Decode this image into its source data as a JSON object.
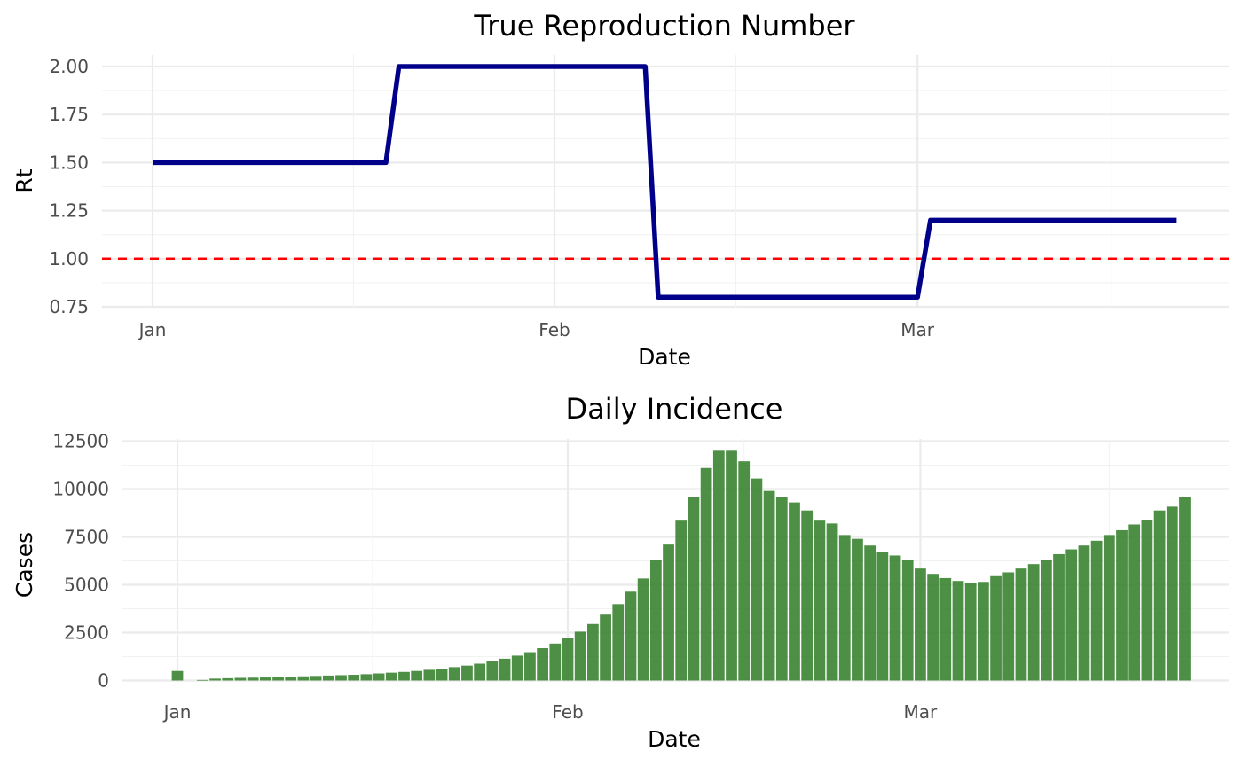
{
  "chart_data": [
    {
      "type": "line",
      "title": "True Reproduction Number",
      "xlabel": "Date",
      "ylabel": "Rt",
      "x_ticks": [
        "Jan",
        "Feb",
        "Mar"
      ],
      "y_ticks": [
        "0.75",
        "1.00",
        "1.25",
        "1.50",
        "1.75",
        "2.00"
      ],
      "ylim": [
        0.75,
        2.0
      ],
      "grid": true,
      "series": [
        {
          "color": "#00008b",
          "points": [
            {
              "x": "2023-01-01",
              "y": 1.5
            },
            {
              "x": "2023-01-19",
              "y": 1.5
            },
            {
              "x": "2023-01-20",
              "y": 2.0
            },
            {
              "x": "2023-02-08",
              "y": 2.0
            },
            {
              "x": "2023-02-09",
              "y": 0.8
            },
            {
              "x": "2023-03-01",
              "y": 0.8
            },
            {
              "x": "2023-03-02",
              "y": 1.2
            },
            {
              "x": "2023-03-21",
              "y": 1.2
            }
          ]
        }
      ],
      "reference_line": {
        "y": 1.0,
        "color": "#ff0000",
        "style": "dashed"
      }
    },
    {
      "type": "bar",
      "title": "Daily Incidence",
      "xlabel": "Date",
      "ylabel": "Cases",
      "x_ticks": [
        "Jan",
        "Feb",
        "Mar"
      ],
      "y_ticks": [
        "0",
        "2500",
        "5000",
        "7500",
        "10000",
        "12500"
      ],
      "ylim": [
        0,
        12500
      ],
      "grid": true,
      "bar_color": "#3a8431",
      "start_date": "2023-01-01",
      "values": [
        500,
        0,
        30,
        100,
        120,
        140,
        150,
        160,
        180,
        200,
        220,
        240,
        260,
        280,
        300,
        330,
        370,
        410,
        450,
        500,
        560,
        620,
        700,
        780,
        880,
        1000,
        1140,
        1300,
        1480,
        1690,
        1930,
        2220,
        2550,
        2950,
        3440,
        3990,
        4640,
        5330,
        6290,
        7100,
        8350,
        9570,
        11100,
        12000,
        12000,
        11450,
        10550,
        9900,
        9560,
        9300,
        8880,
        8350,
        8200,
        7600,
        7400,
        7050,
        6730,
        6530,
        6310,
        5850,
        5570,
        5350,
        5200,
        5100,
        5150,
        5450,
        5650,
        5850,
        6080,
        6320,
        6600,
        6850,
        7050,
        7300,
        7600,
        7850,
        8150,
        8400,
        8880,
        9080,
        9580
      ]
    }
  ]
}
